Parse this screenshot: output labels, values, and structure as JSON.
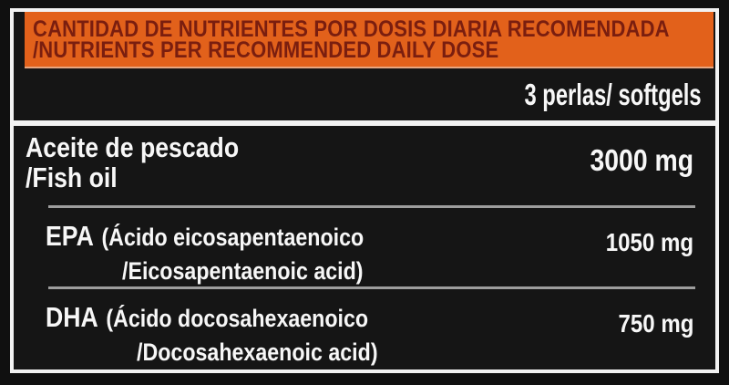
{
  "label": {
    "header": {
      "line1": "CANTIDAD DE NUTRIENTES POR DOSIS DIARIA RECOMENDADA",
      "line2": "/NUTRIENTS PER RECOMMENDED DAILY DOSE"
    },
    "serving": "3 perlas/ softgels",
    "rows": [
      {
        "name_line1": "Aceite de pescado",
        "name_line2": "/Fish oil",
        "amount": "3000 mg"
      },
      {
        "abbr": "EPA",
        "paren_line1": "(Ácido eicosapentaenoico",
        "paren_line2": "/Eicosapentaenoic acid)",
        "amount": "1050 mg"
      },
      {
        "abbr": "DHA",
        "paren_line1": "(Ácido docosahexaenoico",
        "paren_line2": "/Docosahexaenoic acid)",
        "amount": "750 mg"
      }
    ]
  },
  "colors": {
    "orange": "#e2611b",
    "header_text": "#7a1e0f",
    "label_bg": "#151515",
    "outer_bg": "#101010",
    "text_white": "#f7f7f7",
    "divider_gray": "#9d9d9d",
    "frame_white": "#f2f2f2"
  }
}
